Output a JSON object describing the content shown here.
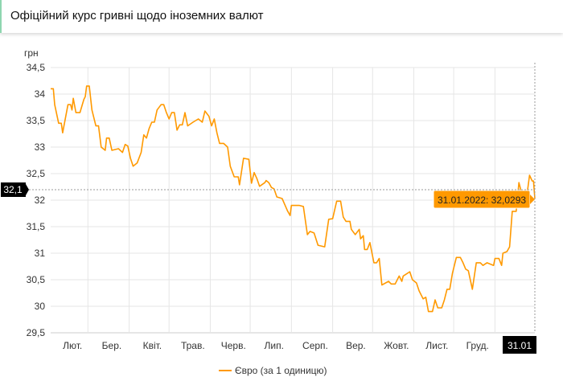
{
  "header": {
    "title": "Офіційний курс гривні щодо іноземних валют"
  },
  "chart_data": {
    "type": "line",
    "title": "",
    "ylabel": "грн",
    "xlabel": "",
    "ylim": [
      29.5,
      34.5
    ],
    "xlim": [
      "2021-02-01",
      "2022-01-31"
    ],
    "y_ticks": [
      "29,5",
      "30",
      "30,5",
      "31",
      "31,5",
      "32",
      "32,5",
      "33",
      "33,5",
      "34",
      "34,5"
    ],
    "x_ticks": [
      "Лют.",
      "Бер.",
      "Квіт.",
      "Трав.",
      "Черв.",
      "Лип.",
      "Серп.",
      "Вер.",
      "Жовт.",
      "Лист.",
      "Груд."
    ],
    "grid": true,
    "legend_position": "bottom",
    "color": "#ff9900",
    "crosshair": {
      "y_label": "32,1",
      "x_label": "31.01"
    },
    "tooltip": "31.01.2022: 32,0293",
    "series": [
      {
        "name": "Євро (за 1 одиницю)",
        "points": [
          [
            "2021-02-01",
            34.1
          ],
          [
            "2021-02-03",
            34.1
          ],
          [
            "2021-02-04",
            33.8
          ],
          [
            "2021-02-07",
            33.45
          ],
          [
            "2021-02-09",
            33.45
          ],
          [
            "2021-02-10",
            33.27
          ],
          [
            "2021-02-14",
            33.8
          ],
          [
            "2021-02-16",
            33.8
          ],
          [
            "2021-02-17",
            33.7
          ],
          [
            "2021-02-18",
            33.92
          ],
          [
            "2021-02-20",
            33.65
          ],
          [
            "2021-02-23",
            33.65
          ],
          [
            "2021-02-26",
            33.9
          ],
          [
            "2021-02-27",
            33.95
          ],
          [
            "2021-02-28",
            34.15
          ],
          [
            "2021-03-02",
            34.15
          ],
          [
            "2021-03-04",
            33.7
          ],
          [
            "2021-03-07",
            33.4
          ],
          [
            "2021-03-09",
            33.4
          ],
          [
            "2021-03-11",
            33.0
          ],
          [
            "2021-03-14",
            32.94
          ],
          [
            "2021-03-15",
            33.17
          ],
          [
            "2021-03-17",
            33.17
          ],
          [
            "2021-03-19",
            32.94
          ],
          [
            "2021-03-24",
            32.97
          ],
          [
            "2021-03-27",
            32.9
          ],
          [
            "2021-03-29",
            33.05
          ],
          [
            "2021-03-31",
            33.02
          ],
          [
            "2021-04-02",
            32.79
          ],
          [
            "2021-04-04",
            32.64
          ],
          [
            "2021-04-07",
            32.7
          ],
          [
            "2021-04-10",
            32.9
          ],
          [
            "2021-04-12",
            33.23
          ],
          [
            "2021-04-14",
            33.17
          ],
          [
            "2021-04-16",
            33.35
          ],
          [
            "2021-04-18",
            33.47
          ],
          [
            "2021-04-20",
            33.47
          ],
          [
            "2021-04-22",
            33.7
          ],
          [
            "2021-04-25",
            33.8
          ],
          [
            "2021-04-27",
            33.8
          ],
          [
            "2021-04-29",
            33.65
          ],
          [
            "2021-05-01",
            33.53
          ],
          [
            "2021-05-03",
            33.65
          ],
          [
            "2021-05-05",
            33.65
          ],
          [
            "2021-05-07",
            33.32
          ],
          [
            "2021-05-09",
            33.42
          ],
          [
            "2021-05-11",
            33.42
          ],
          [
            "2021-05-13",
            33.65
          ],
          [
            "2021-05-15",
            33.4
          ],
          [
            "2021-05-19",
            33.47
          ],
          [
            "2021-05-23",
            33.53
          ],
          [
            "2021-05-26",
            33.47
          ],
          [
            "2021-05-28",
            33.68
          ],
          [
            "2021-05-31",
            33.58
          ],
          [
            "2021-06-02",
            33.4
          ],
          [
            "2021-06-04",
            33.53
          ],
          [
            "2021-06-06",
            33.27
          ],
          [
            "2021-06-08",
            33.07
          ],
          [
            "2021-06-11",
            33.07
          ],
          [
            "2021-06-14",
            33.0
          ],
          [
            "2021-06-16",
            32.64
          ],
          [
            "2021-06-19",
            32.44
          ],
          [
            "2021-06-22",
            32.44
          ],
          [
            "2021-06-23",
            32.29
          ],
          [
            "2021-06-26",
            32.79
          ],
          [
            "2021-06-30",
            32.77
          ],
          [
            "2021-07-02",
            32.32
          ],
          [
            "2021-07-04",
            32.52
          ],
          [
            "2021-07-06",
            32.41
          ],
          [
            "2021-07-08",
            32.26
          ],
          [
            "2021-07-12",
            32.33
          ],
          [
            "2021-07-13",
            32.37
          ],
          [
            "2021-07-15",
            32.33
          ],
          [
            "2021-07-17",
            32.24
          ],
          [
            "2021-07-19",
            32.21
          ],
          [
            "2021-07-21",
            32.06
          ],
          [
            "2021-07-25",
            32.03
          ],
          [
            "2021-07-29",
            31.8
          ],
          [
            "2021-07-31",
            31.71
          ],
          [
            "2021-08-01",
            31.9
          ],
          [
            "2021-08-07",
            31.9
          ],
          [
            "2021-08-10",
            31.88
          ],
          [
            "2021-08-13",
            31.35
          ],
          [
            "2021-08-15",
            31.41
          ],
          [
            "2021-08-18",
            31.38
          ],
          [
            "2021-08-21",
            31.15
          ],
          [
            "2021-08-26",
            31.12
          ],
          [
            "2021-08-29",
            31.64
          ],
          [
            "2021-09-01",
            31.65
          ],
          [
            "2021-09-04",
            31.98
          ],
          [
            "2021-09-07",
            31.98
          ],
          [
            "2021-09-09",
            31.68
          ],
          [
            "2021-09-11",
            31.6
          ],
          [
            "2021-09-14",
            31.6
          ],
          [
            "2021-09-15",
            31.45
          ],
          [
            "2021-09-18",
            31.35
          ],
          [
            "2021-09-21",
            31.45
          ],
          [
            "2021-09-22",
            31.27
          ],
          [
            "2021-09-24",
            31.33
          ],
          [
            "2021-09-25",
            31.07
          ],
          [
            "2021-09-27",
            31.07
          ],
          [
            "2021-09-29",
            31.2
          ],
          [
            "2021-10-02",
            30.82
          ],
          [
            "2021-10-04",
            30.82
          ],
          [
            "2021-10-06",
            30.9
          ],
          [
            "2021-10-08",
            30.4
          ],
          [
            "2021-10-13",
            30.47
          ],
          [
            "2021-10-15",
            30.42
          ],
          [
            "2021-10-18",
            30.42
          ],
          [
            "2021-10-21",
            30.57
          ],
          [
            "2021-10-23",
            30.47
          ],
          [
            "2021-10-24",
            30.57
          ],
          [
            "2021-10-29",
            30.65
          ],
          [
            "2021-10-31",
            30.5
          ],
          [
            "2021-11-03",
            30.44
          ],
          [
            "2021-11-05",
            30.29
          ],
          [
            "2021-11-08",
            30.14
          ],
          [
            "2021-11-10",
            30.17
          ],
          [
            "2021-11-12",
            29.9
          ],
          [
            "2021-11-15",
            29.9
          ],
          [
            "2021-11-17",
            30.12
          ],
          [
            "2021-11-19",
            29.97
          ],
          [
            "2021-11-22",
            29.97
          ],
          [
            "2021-11-24",
            30.12
          ],
          [
            "2021-11-26",
            30.32
          ],
          [
            "2021-11-28",
            30.32
          ],
          [
            "2021-11-30",
            30.62
          ],
          [
            "2021-12-03",
            30.92
          ],
          [
            "2021-12-06",
            30.92
          ],
          [
            "2021-12-08",
            30.82
          ],
          [
            "2021-12-10",
            30.7
          ],
          [
            "2021-12-12",
            30.67
          ],
          [
            "2021-12-15",
            30.32
          ],
          [
            "2021-12-18",
            30.82
          ],
          [
            "2021-12-21",
            30.82
          ],
          [
            "2021-12-23",
            30.77
          ],
          [
            "2021-12-26",
            30.82
          ],
          [
            "2021-12-31",
            30.77
          ],
          [
            "2022-01-01",
            30.9
          ],
          [
            "2022-01-04",
            30.9
          ],
          [
            "2022-01-06",
            30.77
          ],
          [
            "2022-01-07",
            31.0
          ],
          [
            "2022-01-10",
            31.03
          ],
          [
            "2022-01-12",
            31.12
          ],
          [
            "2022-01-14",
            31.79
          ],
          [
            "2022-01-17",
            31.79
          ],
          [
            "2022-01-19",
            32.33
          ],
          [
            "2022-01-20",
            32.24
          ],
          [
            "2022-01-22",
            31.98
          ],
          [
            "2022-01-25",
            32.09
          ],
          [
            "2022-01-27",
            32.47
          ],
          [
            "2022-01-29",
            32.36
          ],
          [
            "2022-01-30",
            32.36
          ],
          [
            "2022-01-31",
            32.0293
          ]
        ]
      }
    ]
  }
}
